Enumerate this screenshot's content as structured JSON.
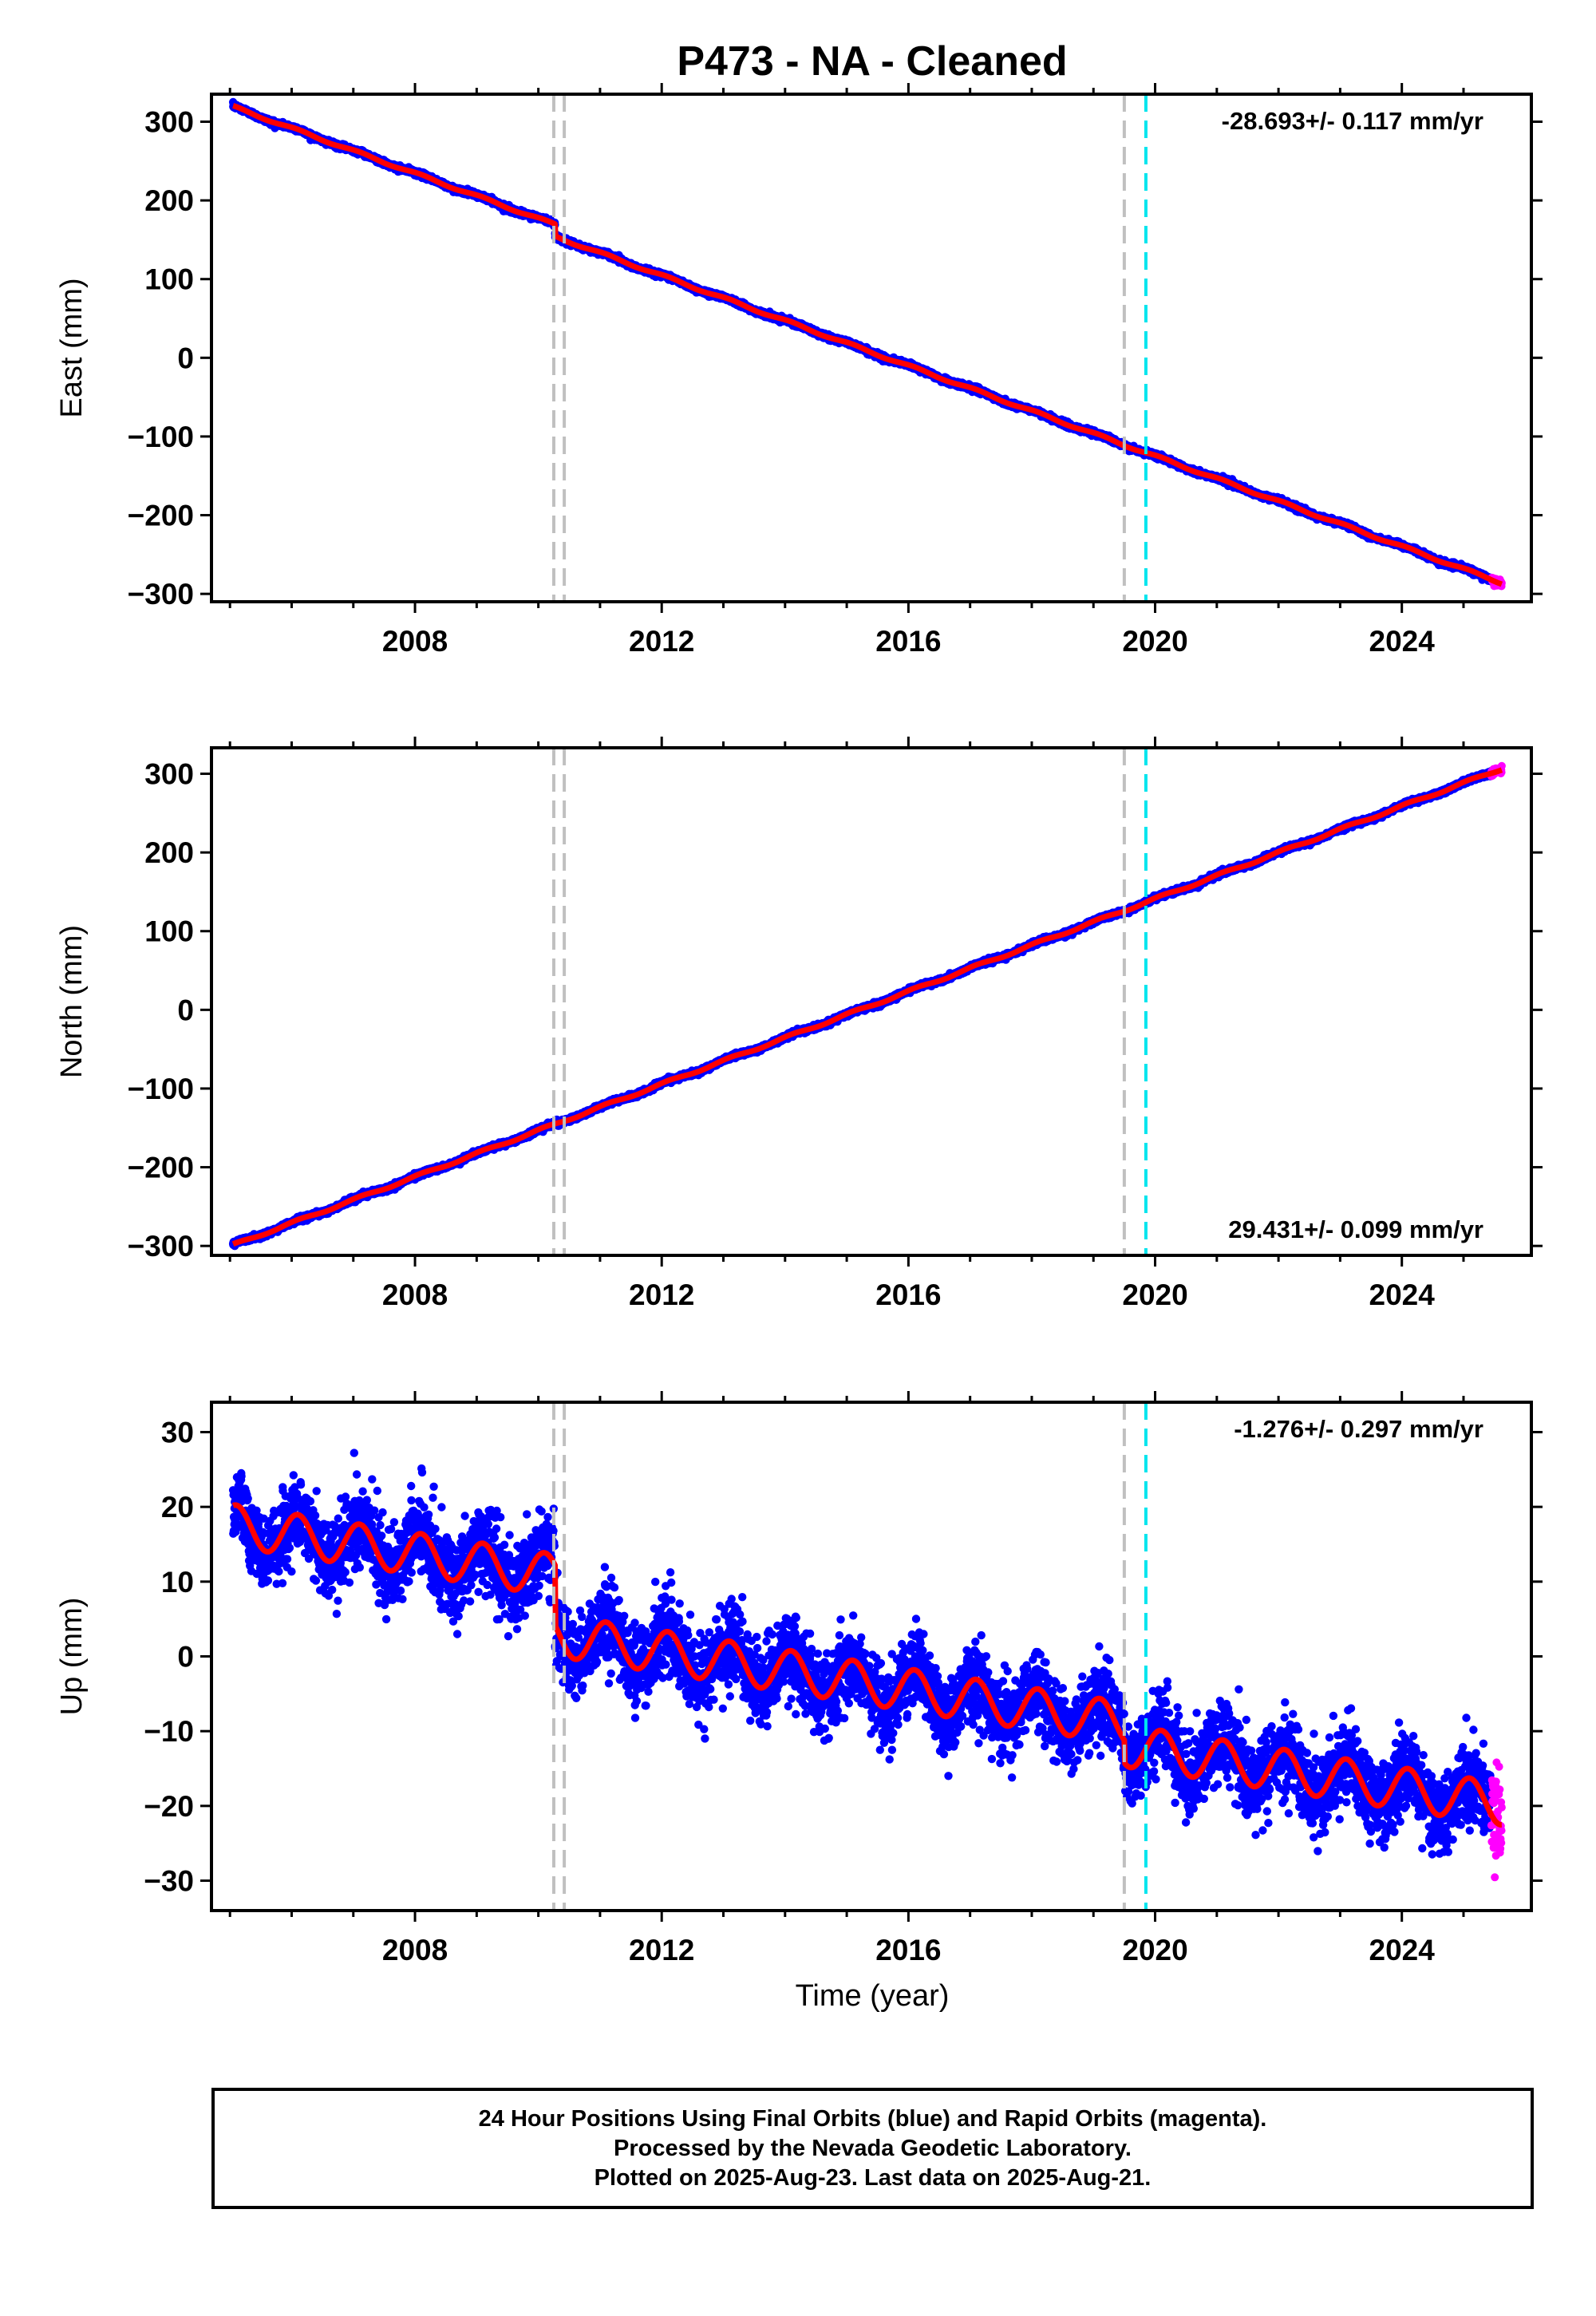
{
  "title": "P473  - NA - Cleaned",
  "xlabel": "Time (year)",
  "caption": [
    "24 Hour Positions Using Final Orbits (blue) and Rapid Orbits (magenta).",
    "Processed by the Nevada Geodetic Laboratory.",
    "Plotted on 2025-Aug-23. Last data on 2025-Aug-21."
  ],
  "colors": {
    "final": "#0000ff",
    "rapid": "#ff00ff",
    "model": "#ff0000",
    "equipment_change": "#c0c0c0",
    "earthquake": "#00e5ee"
  },
  "chart_data": [
    {
      "type": "scatter",
      "component": "East",
      "ylabel": "East (mm)",
      "rate_label": "-28.693+/- 0.117 mm/yr",
      "rate_position": "top-right",
      "xlim": [
        2004.7,
        2026.1
      ],
      "ylim": [
        -310,
        335
      ],
      "xticks": [
        2008,
        2012,
        2016,
        2020,
        2024
      ],
      "yticks": [
        -300,
        -200,
        -100,
        0,
        100,
        200,
        300
      ],
      "start": [
        2005.05,
        319
      ],
      "rate": -28.693,
      "offsets": [
        {
          "year": 2010.27,
          "value": -15
        }
      ],
      "seasonal_amplitude": 1.5,
      "noise": 1.6,
      "rapid_from": 2025.45,
      "equipment_changes": [
        2010.25,
        2010.42,
        2019.5
      ],
      "earthquakes": [
        2019.85
      ]
    },
    {
      "type": "scatter",
      "component": "North",
      "ylabel": "North (mm)",
      "rate_label": "29.431+/- 0.099 mm/yr",
      "rate_position": "bottom-right",
      "xlim": [
        2004.7,
        2026.1
      ],
      "ylim": [
        -312,
        333
      ],
      "xticks": [
        2008,
        2012,
        2016,
        2020,
        2024
      ],
      "yticks": [
        -300,
        -200,
        -100,
        0,
        100,
        200,
        300
      ],
      "start": [
        2005.05,
        -299
      ],
      "rate": 29.431,
      "offsets": [],
      "seasonal_amplitude": 1.5,
      "noise": 1.5,
      "rapid_from": 2025.45,
      "equipment_changes": [
        2010.25,
        2010.42,
        2019.5
      ],
      "earthquakes": [
        2019.85
      ]
    },
    {
      "type": "scatter",
      "component": "Up",
      "ylabel": "Up (mm)",
      "rate_label": "-1.276+/- 0.297 mm/yr",
      "rate_position": "top-right",
      "xlim": [
        2004.7,
        2026.1
      ],
      "ylim": [
        -34,
        34
      ],
      "xticks": [
        2008,
        2012,
        2016,
        2020,
        2024
      ],
      "yticks": [
        -30,
        -20,
        -10,
        0,
        10,
        20,
        30
      ],
      "start": [
        2005.05,
        17.5
      ],
      "rate": -1.276,
      "offsets": [
        {
          "year": 2010.27,
          "value": -8
        },
        {
          "year": 2019.5,
          "value": -3
        }
      ],
      "seasonal_amplitude": 2.8,
      "noise": 2.6,
      "rapid_from": 2025.45,
      "equipment_changes": [
        2010.25,
        2010.42,
        2019.5
      ],
      "earthquakes": [
        2019.85
      ]
    }
  ]
}
